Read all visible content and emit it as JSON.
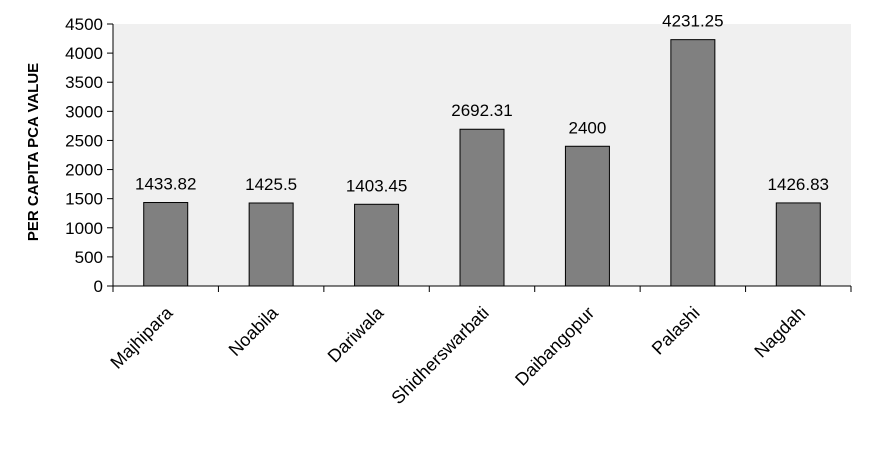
{
  "chart_data": {
    "type": "bar",
    "categories": [
      "Majhipara",
      "Noabila",
      "Dariwala",
      "Shidherswarbati",
      "Daibangopur",
      "Palashi",
      "Nagdah"
    ],
    "series": [
      {
        "values": [
          1433.82,
          1425.5,
          1403.45,
          2692.31,
          2400,
          4231.25,
          1426.83
        ]
      }
    ],
    "value_labels": [
      "1433.82",
      "1425.5",
      "1403.45",
      "2692.31",
      "2400",
      "4231.25",
      "1426.83"
    ],
    "ylabel": "PER CAPITA PCA VALUE",
    "xlabel": "",
    "ylim": [
      0,
      4500
    ],
    "yticks": [
      0,
      500,
      1000,
      1500,
      2000,
      2500,
      3000,
      3500,
      4000,
      4500
    ],
    "grid": false,
    "plot_background": "#f0f0f0",
    "bar_color": "#808080",
    "bar_edge_color": "#000000"
  }
}
